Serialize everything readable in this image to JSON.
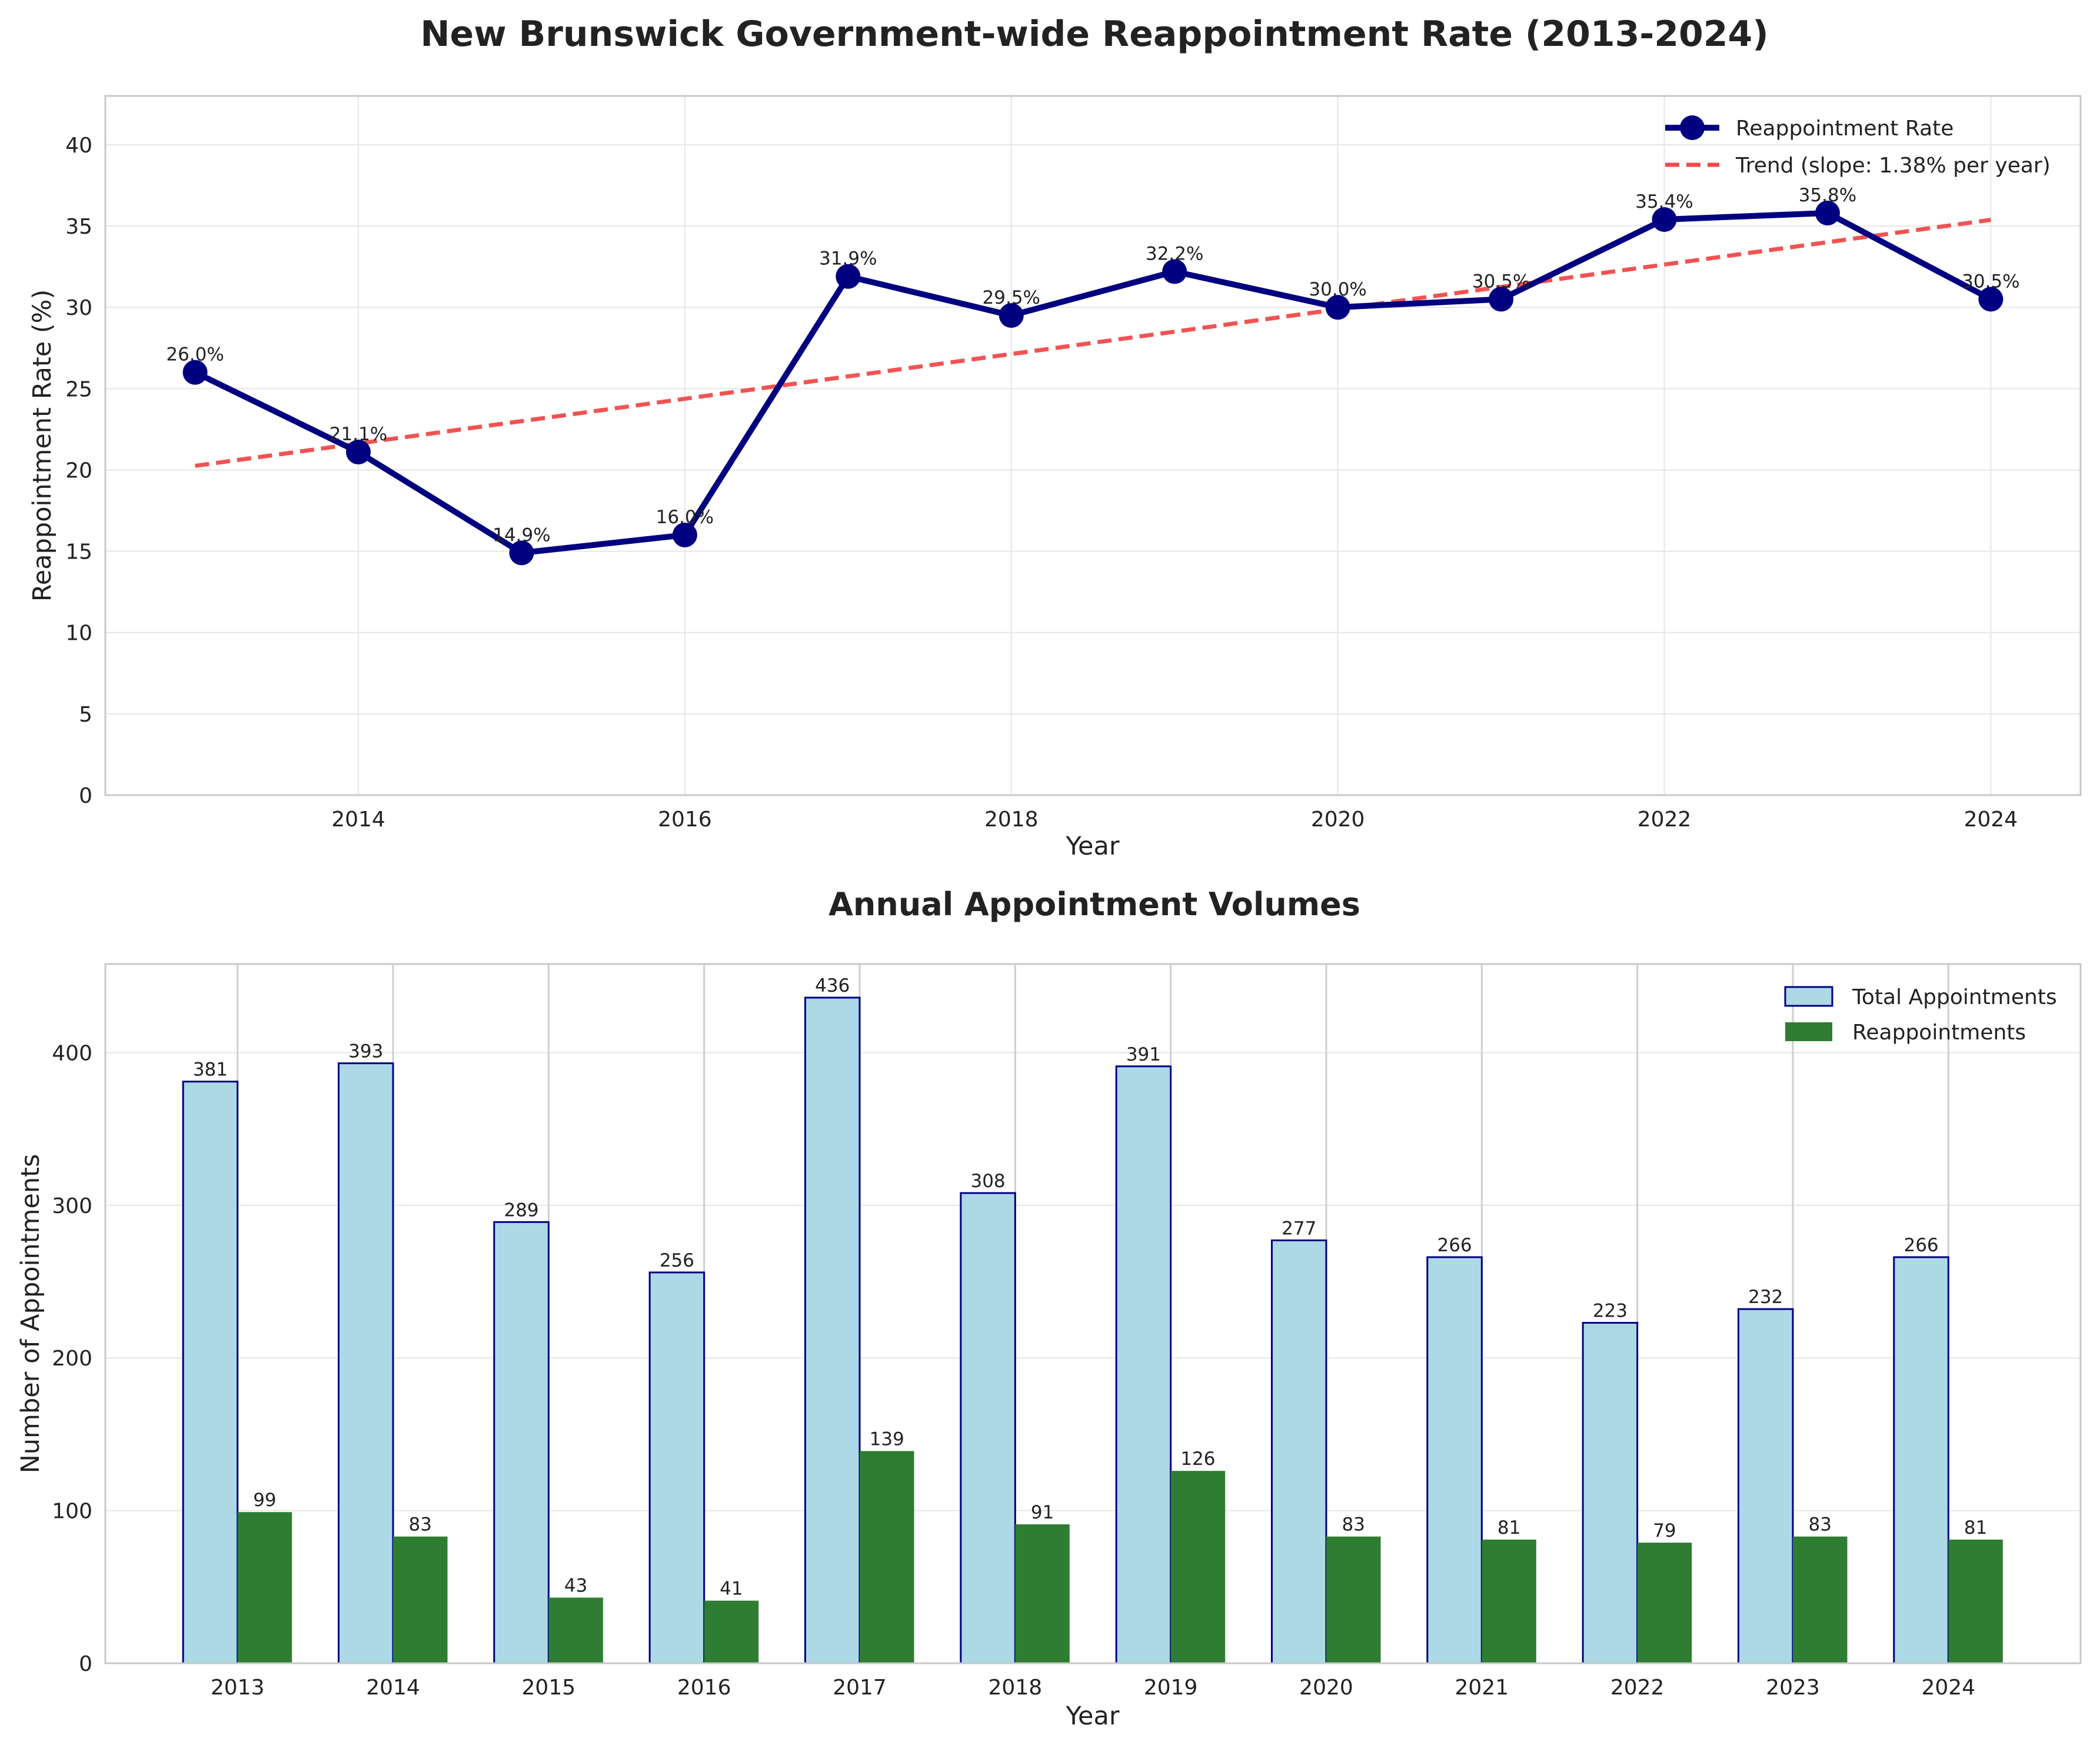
{
  "colors": {
    "rate_line": "#000080",
    "trend_line": "#f04a4a",
    "total_fill": "#add8e6",
    "total_edge": "#000080",
    "reappoint_fill": "#2e7d32"
  },
  "chart_data": [
    {
      "type": "line",
      "title": "New Brunswick Government-wide Reappointment Rate (2013-2024)",
      "xlabel": "Year",
      "ylabel": "Reappointment Rate (%)",
      "xlim": [
        2012.45,
        2024.55
      ],
      "ylim": [
        0,
        43
      ],
      "xticks": [
        2014,
        2016,
        2018,
        2020,
        2022,
        2024
      ],
      "yticks": [
        0,
        5,
        10,
        15,
        20,
        25,
        30,
        35,
        40
      ],
      "grid": true,
      "legend": "top-right",
      "x": [
        2013,
        2014,
        2015,
        2016,
        2017,
        2018,
        2019,
        2020,
        2021,
        2022,
        2023,
        2024
      ],
      "series": [
        {
          "name": "Reappointment Rate",
          "values": [
            26.0,
            21.1,
            14.9,
            16.0,
            31.9,
            29.5,
            32.2,
            30.0,
            30.5,
            35.4,
            35.8,
            30.5
          ],
          "labels": [
            "26.0%",
            "21.1%",
            "14.9%",
            "16.0%",
            "31.9%",
            "29.5%",
            "32.2%",
            "30.0%",
            "30.5%",
            "35.4%",
            "35.8%",
            "30.5%"
          ]
        },
        {
          "name": "Trend (slope: 1.38% per year)",
          "style": "dashed",
          "x": [
            2013,
            2024
          ],
          "values": [
            20.25,
            35.38
          ]
        }
      ]
    },
    {
      "type": "bar",
      "title": "Annual Appointment Volumes",
      "xlabel": "Year",
      "ylabel": "Number of Appointments",
      "ylim": [
        0,
        458
      ],
      "yticks": [
        0,
        100,
        200,
        300,
        400
      ],
      "grid": true,
      "legend": "top-right",
      "categories": [
        "2013",
        "2014",
        "2015",
        "2016",
        "2017",
        "2018",
        "2019",
        "2020",
        "2021",
        "2022",
        "2023",
        "2024"
      ],
      "series": [
        {
          "name": "Total Appointments",
          "values": [
            381,
            393,
            289,
            256,
            436,
            308,
            391,
            277,
            266,
            223,
            232,
            266
          ]
        },
        {
          "name": "Reappointments",
          "values": [
            99,
            83,
            43,
            41,
            139,
            91,
            126,
            83,
            81,
            79,
            83,
            81
          ]
        }
      ]
    }
  ]
}
